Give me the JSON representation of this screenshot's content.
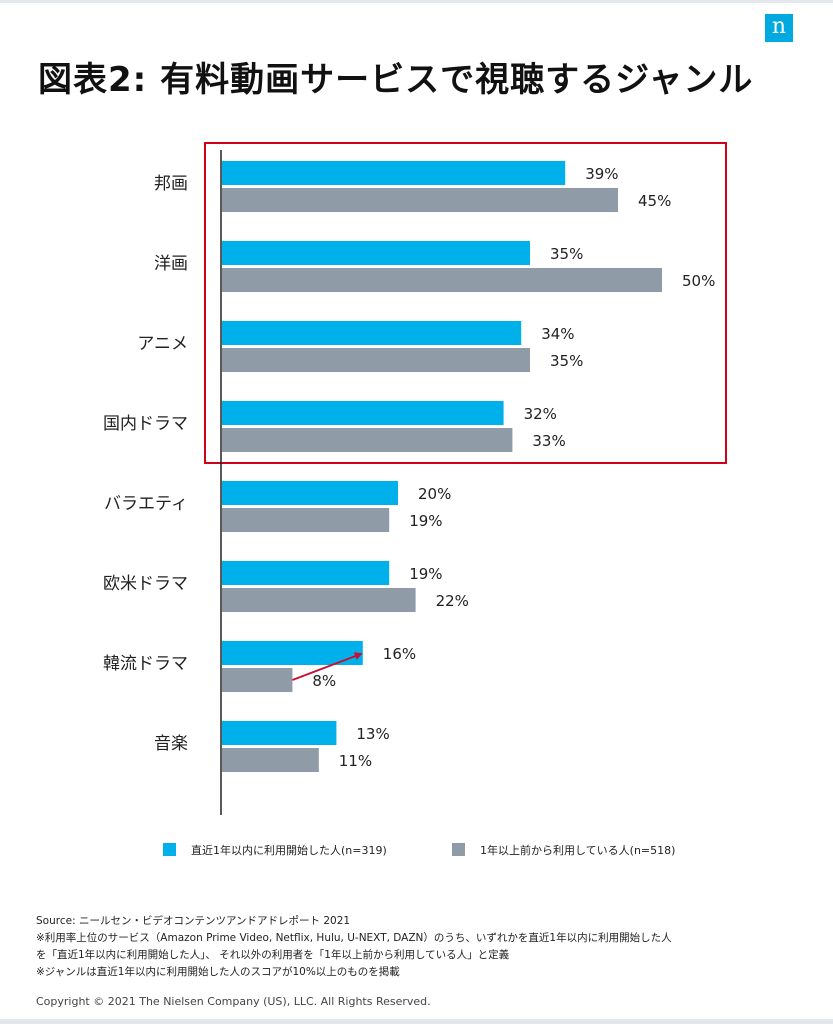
{
  "logo": {
    "text": "n",
    "color": "#00a9e0"
  },
  "title": "図表2: 有料動画サービスで視聴するジャンル",
  "chart_data": {
    "type": "bar",
    "orientation": "horizontal",
    "categories": [
      "邦画",
      "洋画",
      "アニメ",
      "国内ドラマ",
      "バラエティ",
      "欧米ドラマ",
      "韓流ドラマ",
      "音楽"
    ],
    "series": [
      {
        "name": "直近1年以内に利用開始した人(n=319)",
        "color": "#00b0ea",
        "values": [
          39,
          35,
          34,
          32,
          20,
          19,
          16,
          13
        ],
        "labels": [
          "39%",
          "35%",
          "34%",
          "32%",
          "20%",
          "19%",
          "16%",
          "13%"
        ]
      },
      {
        "name": "1年以上前から利用している人(n=518)",
        "color": "#8f9ba6",
        "values": [
          45,
          50,
          35,
          33,
          19,
          22,
          8,
          11
        ],
        "labels": [
          "45%",
          "50%",
          "35%",
          "33%",
          "19%",
          "22%",
          "8%",
          "11%"
        ]
      }
    ],
    "xlim": [
      0,
      50
    ],
    "legend_position": "bottom",
    "highlight": {
      "categories": [
        "邦画",
        "洋画",
        "アニメ",
        "国内ドラマ"
      ],
      "color": "#d0021b"
    },
    "annotation": {
      "type": "arrow",
      "category": "韓流ドラマ",
      "from_series": 1,
      "to_series": 0,
      "color": "#c8102e"
    }
  },
  "notes": [
    "Source: ニールセン・ビデオコンテンツアンドアドレポート 2021",
    "※利用率上位のサービス（Amazon Prime Video, Netflix, Hulu, U-NEXT, DAZN）のうち、いずれかを直近1年以内に利用開始した人",
    "を「直近1年以内に利用開始した人」、 それ以外の利用者を「1年以上前から利用している人」と定義",
    "※ジャンルは直近1年以内に利用開始した人のスコアが10%以上のものを掲載"
  ],
  "copyright": "Copyright © 2021 The Nielsen Company (US), LLC. All Rights Reserved."
}
